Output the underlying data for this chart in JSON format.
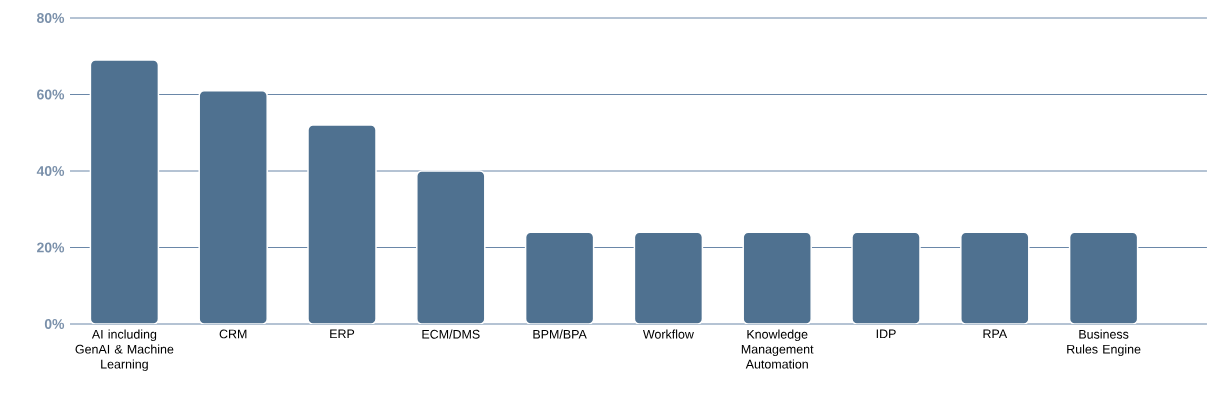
{
  "chart_data": {
    "type": "bar",
    "categories": [
      "AI including GenAI & Machine Learning",
      "CRM",
      "ERP",
      "ECM/DMS",
      "BPM/BPA",
      "Workflow",
      "Knowledge Management Automation",
      "IDP",
      "RPA",
      "Business Rules Engine"
    ],
    "values": [
      69,
      61,
      52,
      40,
      24,
      24,
      24,
      24,
      24,
      24
    ],
    "color": "#4f7190",
    "ylim": [
      0,
      80
    ],
    "yticks": [
      {
        "value": 0,
        "label": "0%"
      },
      {
        "value": 20,
        "label": "20%"
      },
      {
        "value": 40,
        "label": "40%"
      },
      {
        "value": 60,
        "label": "60%"
      },
      {
        "value": 80,
        "label": "80%"
      }
    ],
    "grid": "y"
  }
}
